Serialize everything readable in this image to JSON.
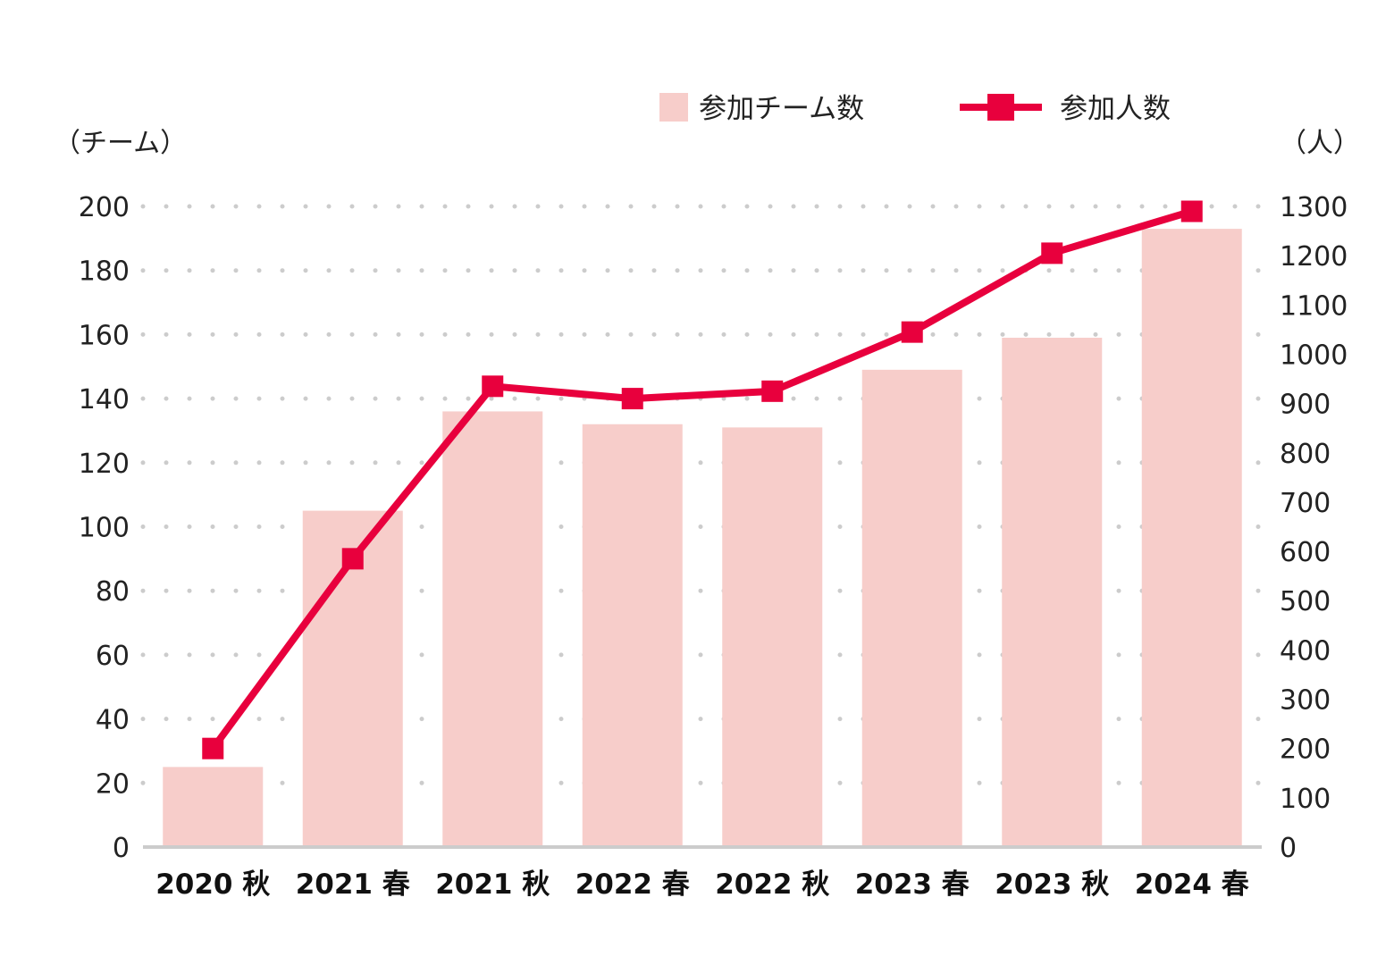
{
  "chart_data": {
    "type": "bar+line",
    "categories": [
      "2020 秋",
      "2021 春",
      "2021 秋",
      "2022 春",
      "2022 秋",
      "2023 春",
      "2023 秋",
      "2024 春"
    ],
    "series": [
      {
        "name": "参加チーム数",
        "type": "bar",
        "axis": "left",
        "color": "#f7cdca",
        "values": [
          25,
          105,
          136,
          132,
          131,
          149,
          159,
          193
        ]
      },
      {
        "name": "参加人数",
        "type": "line",
        "axis": "right",
        "color": "#e8003d",
        "values": [
          200,
          585,
          935,
          910,
          925,
          1045,
          1205,
          1290
        ]
      }
    ],
    "y_left": {
      "unit_label": "（チーム）",
      "ylim": [
        0,
        200
      ],
      "ticks": [
        0,
        20,
        40,
        60,
        80,
        100,
        120,
        140,
        160,
        180,
        200
      ]
    },
    "y_right": {
      "unit_label": "（人）",
      "ylim": [
        0,
        1300
      ],
      "ticks": [
        0,
        100,
        200,
        300,
        400,
        500,
        600,
        700,
        800,
        900,
        1000,
        1100,
        1200,
        1300
      ]
    },
    "grid": true,
    "grid_style": "dotted",
    "legend_position": "top-right",
    "baseline_color": "#cccccc",
    "grid_color": "#cccccc"
  }
}
